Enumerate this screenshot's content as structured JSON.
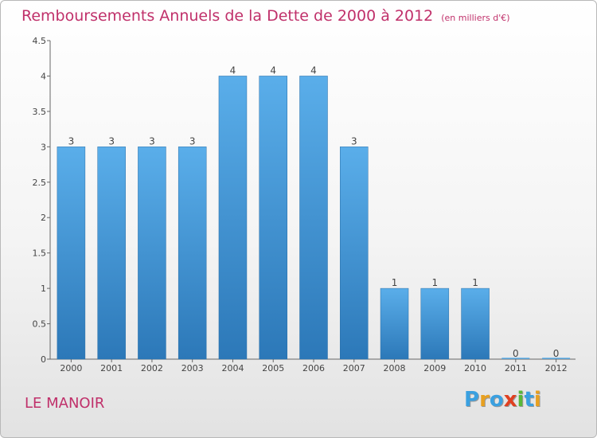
{
  "header": {
    "title": "Remboursements Annuels de la Dette de 2000 à 2012",
    "unit": "(en milliers d'€)"
  },
  "footer": {
    "commune": "LE MANOIR",
    "logo_letters": [
      "P",
      "r",
      "o",
      "x",
      "i",
      "t",
      "i"
    ],
    "logo_colors": [
      "#3aa0e0",
      "#e8a020",
      "#3aa0e0",
      "#e04020",
      "#58b838",
      "#3aa0e0",
      "#e8a020"
    ]
  },
  "colors": {
    "bar_top": "#5aaeea",
    "bar_bottom": "#2c78b8",
    "title": "#c0306a"
  },
  "chart_data": {
    "type": "bar",
    "title": "Remboursements Annuels de la Dette de 2000 à 2012",
    "xlabel": "",
    "ylabel": "",
    "categories": [
      "2000",
      "2001",
      "2002",
      "2003",
      "2004",
      "2005",
      "2006",
      "2007",
      "2008",
      "2009",
      "2010",
      "2011",
      "2012"
    ],
    "values": [
      3,
      3,
      3,
      3,
      4,
      4,
      4,
      3,
      1,
      1,
      1,
      0,
      0
    ],
    "data_labels": [
      "3",
      "3",
      "3",
      "3",
      "4",
      "4",
      "4",
      "3",
      "1",
      "1",
      "1",
      "0",
      "0"
    ],
    "ylim": [
      0,
      4.5
    ],
    "yticks": [
      0,
      0.5,
      1,
      1.5,
      2,
      2.5,
      3,
      3.5,
      4,
      4.5
    ],
    "ytick_labels": [
      "0",
      "0.5",
      "1",
      "1.5",
      "2",
      "2.5",
      "3",
      "3.5",
      "4",
      "4.5"
    ],
    "grid": false,
    "legend": "none"
  }
}
